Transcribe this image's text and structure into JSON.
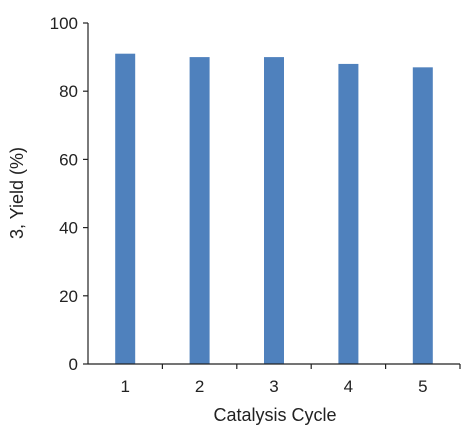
{
  "chart_data": {
    "type": "bar",
    "categories": [
      "1",
      "2",
      "3",
      "4",
      "5"
    ],
    "values": [
      91,
      90,
      90,
      88,
      87
    ],
    "xlabel": "Catalysis Cycle",
    "ylabel": "3,   Yield (%)",
    "ylim": [
      0,
      100
    ],
    "yticks": [
      "0",
      "20",
      "40",
      "60",
      "80",
      "100"
    ],
    "grid": false,
    "legend": "none",
    "bar_color": "#4f81bd",
    "axis_color": "#222222"
  }
}
